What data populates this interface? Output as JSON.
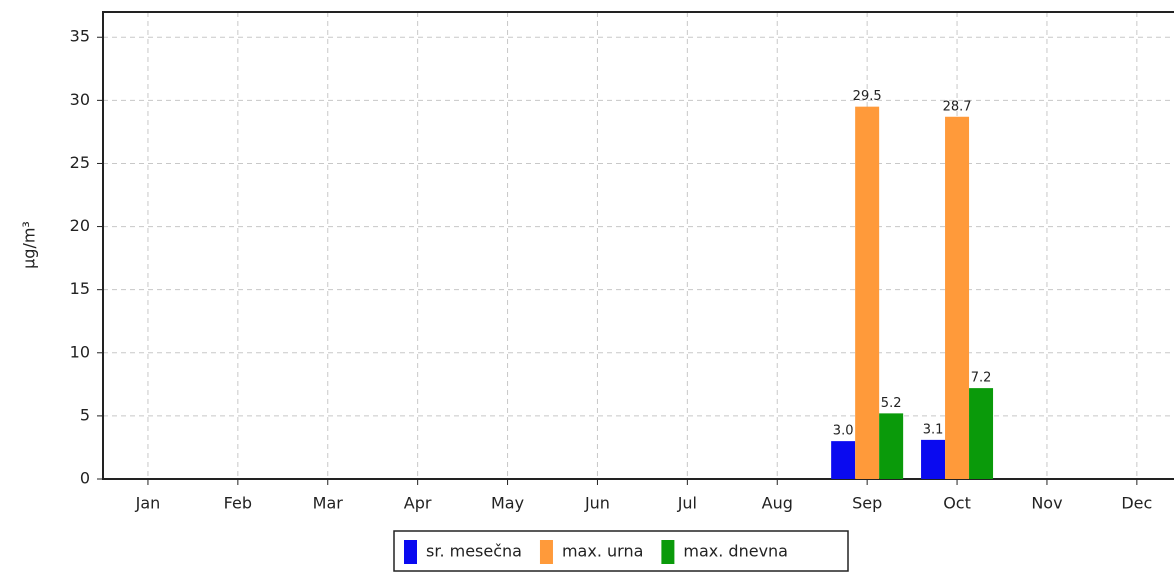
{
  "chart_data": {
    "type": "bar",
    "y_label": "µg/m³",
    "categories": [
      "Jan",
      "Feb",
      "Mar",
      "Apr",
      "May",
      "Jun",
      "Jul",
      "Aug",
      "Sep",
      "Oct",
      "Nov",
      "Dec"
    ],
    "series": [
      {
        "name": "sr. mesečna",
        "color": "#0a0af0",
        "values": [
          null,
          null,
          null,
          null,
          null,
          null,
          null,
          null,
          3,
          3.1,
          null,
          null
        ],
        "value_labels": [
          null,
          null,
          null,
          null,
          null,
          null,
          null,
          null,
          "3.0",
          "3.1",
          null,
          null
        ]
      },
      {
        "name": "max. urna",
        "color": "#ff9a3a",
        "values": [
          null,
          null,
          null,
          null,
          null,
          null,
          null,
          null,
          29.5,
          28.7,
          null,
          null
        ]
      },
      {
        "name": "max. dnevna",
        "color": "#0a9a0a",
        "values": [
          null,
          null,
          null,
          null,
          null,
          null,
          null,
          null,
          5.2,
          7.2,
          null,
          null
        ]
      }
    ],
    "ylim": [
      0,
      37
    ],
    "yticks": [
      0,
      5,
      10,
      15,
      20,
      25,
      30,
      35
    ],
    "grid": true
  }
}
